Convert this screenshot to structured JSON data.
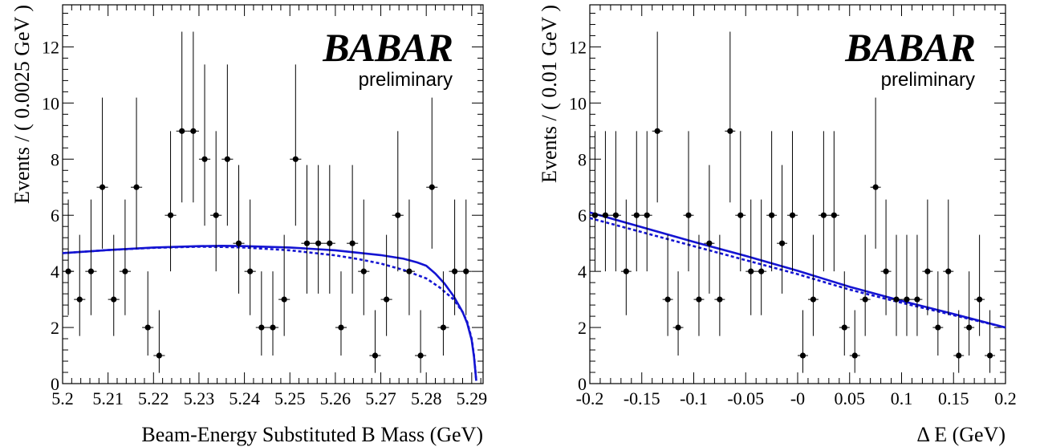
{
  "chart_data": [
    {
      "type": "scatter",
      "xlabel": "Beam-Energy Substituted B Mass (GeV)",
      "ylabel": "Events / ( 0.0025 GeV )",
      "xlim": [
        5.2,
        5.2925
      ],
      "ylim": [
        0,
        13.5
      ],
      "xticks": [
        "5.2",
        "5.21",
        "5.22",
        "5.23",
        "5.24",
        "5.25",
        "5.26",
        "5.27",
        "5.28",
        "5.29"
      ],
      "xtick_values": [
        5.2,
        5.21,
        5.22,
        5.23,
        5.24,
        5.25,
        5.26,
        5.27,
        5.28,
        5.29
      ],
      "yticks": [
        "0",
        "2",
        "4",
        "6",
        "8",
        "10",
        "12"
      ],
      "ytick_values": [
        0,
        2,
        4,
        6,
        8,
        10,
        12
      ],
      "logo": "BABAR",
      "annotation": "preliminary",
      "series": [
        {
          "role": "data",
          "x": [
            5.20125,
            5.20375,
            5.20625,
            5.20875,
            5.21125,
            5.21375,
            5.21625,
            5.21875,
            5.22125,
            5.22375,
            5.22625,
            5.22875,
            5.23125,
            5.23375,
            5.23625,
            5.23875,
            5.24125,
            5.24375,
            5.24625,
            5.24875,
            5.25125,
            5.25375,
            5.25625,
            5.25875,
            5.26125,
            5.26375,
            5.26625,
            5.26875,
            5.27125,
            5.27375,
            5.27625,
            5.27875,
            5.28125,
            5.28375,
            5.28625,
            5.28875
          ],
          "y": [
            4,
            3,
            4,
            7,
            3,
            4,
            7,
            2,
            1,
            6,
            9,
            9,
            8,
            6,
            8,
            5,
            4,
            2,
            2,
            3,
            8,
            5,
            5,
            5,
            2,
            5,
            4,
            1,
            3,
            6,
            4,
            1,
            7,
            2,
            4,
            4
          ]
        },
        {
          "role": "fit-total",
          "style": "solid",
          "x": [
            5.2,
            5.21,
            5.22,
            5.23,
            5.235,
            5.24,
            5.25,
            5.26,
            5.27,
            5.275,
            5.278,
            5.28,
            5.282,
            5.284,
            5.286,
            5.288,
            5.289,
            5.29,
            5.2905,
            5.291
          ],
          "y": [
            4.65,
            4.76,
            4.85,
            4.9,
            4.91,
            4.9,
            4.85,
            4.75,
            4.58,
            4.45,
            4.32,
            4.2,
            3.92,
            3.57,
            3.12,
            2.55,
            2.15,
            1.55,
            0.95,
            0.1
          ]
        },
        {
          "role": "fit-background",
          "style": "dashed",
          "x": [
            5.2,
            5.21,
            5.22,
            5.23,
            5.235,
            5.24,
            5.25,
            5.26,
            5.265,
            5.27,
            5.275,
            5.28,
            5.283,
            5.286,
            5.288,
            5.289,
            5.29,
            5.2905,
            5.291
          ],
          "y": [
            4.65,
            4.76,
            4.84,
            4.88,
            4.87,
            4.85,
            4.75,
            4.57,
            4.44,
            4.28,
            4.05,
            3.75,
            3.42,
            3.0,
            2.55,
            2.2,
            1.6,
            1.0,
            0.1
          ]
        }
      ]
    },
    {
      "type": "scatter",
      "xlabel": "Δ E (GeV)",
      "ylabel": "Events / ( 0.01 GeV )",
      "xlim": [
        -0.2,
        0.2
      ],
      "ylim": [
        0,
        13.5
      ],
      "xticks": [
        "-0.2",
        "-0.15",
        "-0.1",
        "-0.05",
        "-0",
        "0.05",
        "0.1",
        "0.15",
        "0.2"
      ],
      "xtick_values": [
        -0.2,
        -0.15,
        -0.1,
        -0.05,
        0,
        0.05,
        0.1,
        0.15,
        0.2
      ],
      "yticks": [
        "0",
        "2",
        "4",
        "6",
        "8",
        "10",
        "12"
      ],
      "ytick_values": [
        0,
        2,
        4,
        6,
        8,
        10,
        12
      ],
      "logo": "BABAR",
      "annotation": "preliminary",
      "series": [
        {
          "role": "data",
          "x": [
            -0.195,
            -0.185,
            -0.175,
            -0.165,
            -0.155,
            -0.145,
            -0.135,
            -0.125,
            -0.115,
            -0.105,
            -0.095,
            -0.085,
            -0.075,
            -0.065,
            -0.055,
            -0.045,
            -0.035,
            -0.025,
            -0.015,
            -0.005,
            0.005,
            0.015,
            0.025,
            0.035,
            0.045,
            0.055,
            0.065,
            0.075,
            0.085,
            0.095,
            0.105,
            0.115,
            0.125,
            0.135,
            0.145,
            0.155,
            0.165,
            0.175,
            0.185
          ],
          "y": [
            6,
            6,
            6,
            4,
            6,
            6,
            9,
            3,
            2,
            6,
            3,
            5,
            3,
            9,
            6,
            4,
            4,
            6,
            5,
            6,
            1,
            3,
            6,
            6,
            2,
            1,
            3,
            7,
            4,
            3,
            3,
            3,
            4,
            2,
            4,
            1,
            2,
            3,
            1
          ]
        },
        {
          "role": "fit-total",
          "style": "solid",
          "x": [
            -0.2,
            -0.1,
            -0.05,
            0,
            0.05,
            0.1,
            0.15,
            0.2
          ],
          "y": [
            6.1,
            5.05,
            4.55,
            4.02,
            3.45,
            2.95,
            2.48,
            2.0
          ]
        },
        {
          "role": "fit-background",
          "style": "dashed",
          "x": [
            -0.2,
            -0.1,
            -0.05,
            0,
            0.05,
            0.1,
            0.15,
            0.2
          ],
          "y": [
            5.9,
            4.9,
            4.4,
            3.9,
            3.35,
            2.88,
            2.44,
            2.0
          ]
        }
      ]
    }
  ],
  "colors": {
    "fit": "#1414d2",
    "data": "#000000"
  }
}
